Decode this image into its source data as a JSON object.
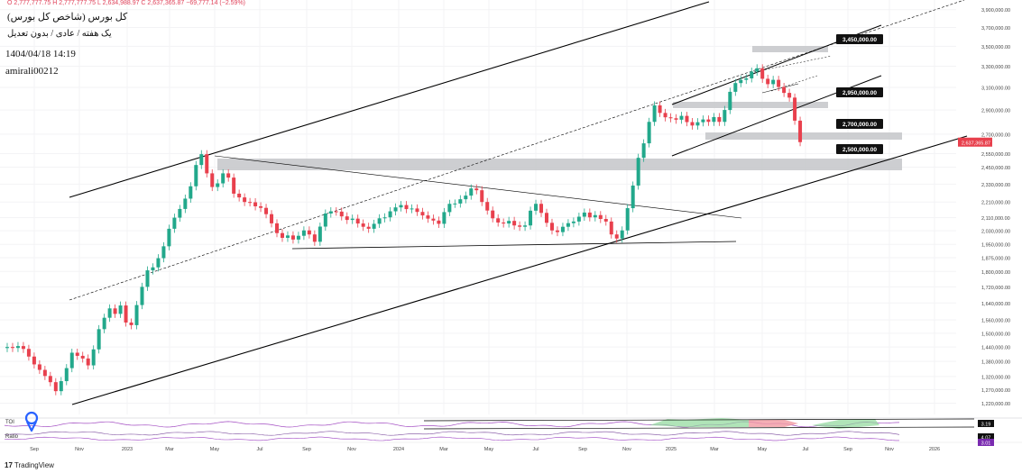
{
  "header": {
    "ohlc_line": "O 2,777,777.75  H 2,777,777.75  L 2,634,988.97  C 2,637,365.87  −69,777.14 (−2.59%)",
    "title": "کل بورس (شاخص کل بورس)",
    "subtitle": "یک هفته / عادی / بدون تعدیل",
    "datetime": "1404/04/18 14:19",
    "author": "amirali00212"
  },
  "oscillators": {
    "label_1": "TOI",
    "value_1": "3.19",
    "label_2": "Ratio",
    "value_2": "3.01",
    "value_3": "4.07"
  },
  "brand": {
    "logo": "17",
    "name": "TradingView"
  },
  "colors": {
    "up": "#22a88b",
    "down": "#e8404d",
    "zone": "#c4c5c9",
    "trendline": "#000000",
    "price_tag": "#e8404d"
  },
  "chart_data": {
    "type": "candlestick",
    "timeframe": "weekly",
    "y_axis": {
      "scale": "log",
      "ylim": [
        1180000,
        3960000
      ],
      "tick_labels": [
        "3,900,000.00",
        "3,700,000.00",
        "3,500,000.00",
        "3,300,000.00",
        "3,100,000.00",
        "2,900,000.00",
        "2,700,000.00",
        "2,550,000.00",
        "2,450,000.00",
        "2,330,000.00",
        "2,210,000.00",
        "2,110,000.00",
        "2,030,000.00",
        "1,950,000.00",
        "1,875,000.00",
        "1,800,000.00",
        "1,720,000.00",
        "1,640,000.00",
        "1,560,000.00",
        "1,500,000.00",
        "1,440,000.00",
        "1,380,000.00",
        "1,320,000.00",
        "1,270,000.00",
        "1,220,000.00"
      ]
    },
    "x_axis": {
      "tick_labels": [
        "Sep",
        "Nov",
        "2023",
        "Mar",
        "May",
        "Jul",
        "Sep",
        "Nov",
        "2024",
        "Mar",
        "May",
        "Jul",
        "Sep",
        "Nov",
        "2025",
        "Mar",
        "May",
        "Jul",
        "Sep",
        "Nov",
        "2026"
      ]
    },
    "last_price": "2,637,365.87",
    "last_price_value": 2637366,
    "horizontal_levels": [
      {
        "label": "3,450,000.00",
        "value": 3450000
      },
      {
        "label": "2,950,000.00",
        "value": 2950000
      },
      {
        "label": "2,700,000.00",
        "value": 2700000
      },
      {
        "label": "2,500,000.00",
        "value": 2500000
      }
    ],
    "close_series": [
      1440000,
      1436000,
      1444000,
      1432000,
      1400000,
      1368000,
      1346000,
      1322000,
      1298000,
      1264000,
      1302000,
      1353000,
      1416000,
      1403000,
      1392000,
      1364000,
      1430000,
      1518000,
      1570000,
      1614000,
      1588000,
      1628000,
      1548000,
      1536000,
      1630000,
      1720000,
      1806000,
      1822000,
      1872000,
      1939000,
      2042000,
      2110000,
      2165000,
      2232000,
      2315000,
      2465000,
      2545000,
      2405000,
      2310000,
      2335000,
      2405000,
      2375000,
      2265000,
      2240000,
      2210000,
      2208000,
      2182000,
      2172000,
      2132000,
      2075000,
      2016000,
      1988000,
      2002000,
      1978000,
      2000000,
      2032000,
      2008000,
      1965000,
      2055000,
      2136000,
      2150000,
      2148000,
      2118000,
      2096000,
      2104000,
      2074000,
      2054000,
      2042000,
      2072000,
      2106000,
      2112000,
      2150000,
      2175000,
      2190000,
      2164000,
      2168000,
      2146000,
      2124000,
      2104000,
      2092000,
      2072000,
      2145000,
      2198000,
      2200000,
      2228000,
      2252000,
      2300000,
      2288000,
      2210000,
      2155000,
      2106000,
      2080000,
      2074000,
      2090000,
      2062000,
      2054000,
      2062000,
      2154000,
      2198000,
      2140000,
      2078000,
      2032000,
      2022000,
      2054000,
      2076000,
      2086000,
      2116000,
      2142000,
      2112000,
      2126000,
      2102000,
      2086000,
      2008000,
      1984000,
      2032000,
      2170000,
      2320000,
      2518000,
      2628000,
      2800000,
      2940000,
      2875000,
      2838000,
      2830000,
      2818000,
      2850000,
      2798000,
      2770000,
      2797000,
      2820000,
      2800000,
      2840000,
      2800000,
      2900000,
      3060000,
      3140000,
      3170000,
      3184000,
      3248000,
      3280000,
      3180000,
      3130000,
      3170000,
      3104000,
      3050000,
      3008000,
      2810000,
      2637366
    ],
    "annotations": [
      "Rising channel (upper, lower and mid dashed line)",
      "Descending resistance line from May 2023 high",
      "Horizontal support line around 1,980,000",
      "Rising channel from Dec 2024 to Jul 2025",
      "Shaded support/resistance zones at 3,450,000, 2,950,000, 2,700,000 and 2,500,000"
    ]
  }
}
